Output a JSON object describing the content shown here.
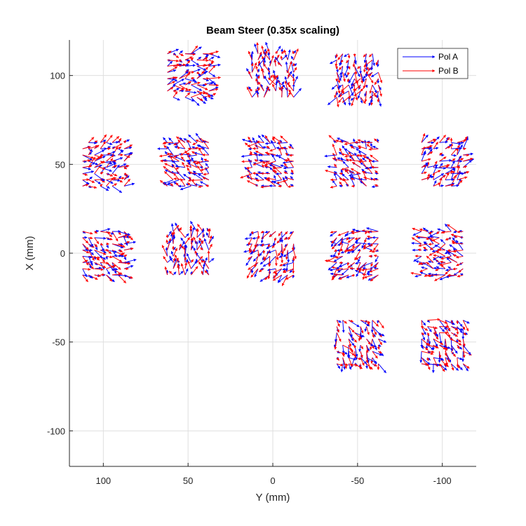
{
  "chart_data": {
    "type": "quiver",
    "title": "Beam Steer (0.35x scaling)",
    "xlabel": "Y (mm)",
    "ylabel": "X (mm)",
    "xlim": [
      120,
      -120
    ],
    "ylim": [
      -120,
      120
    ],
    "x_reversed": true,
    "xticks": [
      100,
      50,
      0,
      -50,
      -100
    ],
    "yticks": [
      100,
      50,
      0,
      -50,
      -100
    ],
    "grid": true,
    "legend_position": "top-right",
    "arrow_scale": 0.35,
    "series": [
      {
        "name": "Pol A",
        "color": "#0000ff"
      },
      {
        "name": "Pol B",
        "color": "#ff0000"
      }
    ],
    "tile_centers": [
      [
        50,
        100
      ],
      [
        0,
        100
      ],
      [
        -50,
        100
      ],
      [
        100,
        50
      ],
      [
        50,
        50
      ],
      [
        0,
        50
      ],
      [
        -50,
        50
      ],
      [
        -100,
        50
      ],
      [
        100,
        0
      ],
      [
        50,
        0
      ],
      [
        0,
        0
      ],
      [
        -50,
        0
      ],
      [
        -100,
        0
      ],
      [
        -50,
        -50
      ],
      [
        -100,
        -50
      ]
    ],
    "tile_grid_pitch_mm": 3.5,
    "tile_grid_points": 8
  }
}
